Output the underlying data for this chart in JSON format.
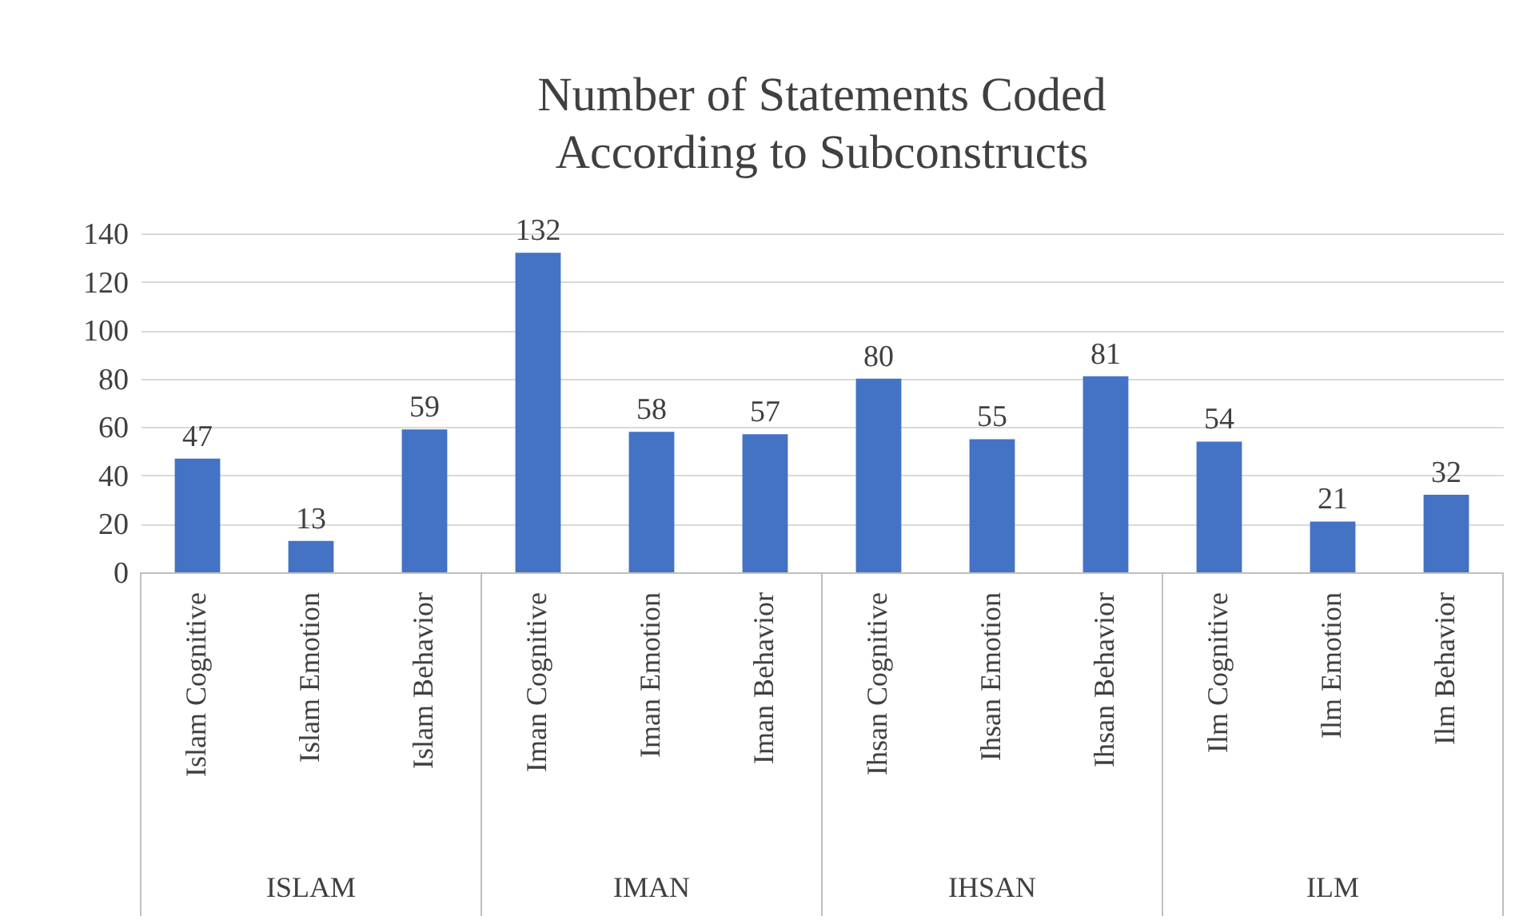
{
  "chart_data": {
    "type": "bar",
    "title": "Number of Statements Coded According to Subconstructs",
    "categories": [
      "Islam Cognitive",
      "Islam Emotion",
      "Islam Behavior",
      "Iman Cognitive",
      "Iman Emotion",
      "Iman Behavior",
      "Ihsan Cognitive",
      "Ihsan Emotion",
      "Ihsan Behavior",
      "Ilm Cognitive",
      "Ilm Emotion",
      "Ilm Behavior"
    ],
    "values": [
      47,
      13,
      59,
      132,
      58,
      57,
      80,
      55,
      81,
      54,
      21,
      32
    ],
    "color": "#4472c4",
    "ylim": [
      0,
      140
    ],
    "yticks": [
      0,
      20,
      40,
      60,
      80,
      100,
      120,
      140
    ],
    "grid": "y",
    "data_labels": true,
    "annotations": [
      "ISLAM",
      "IMAN",
      "IHSAN",
      "ILM"
    ]
  }
}
